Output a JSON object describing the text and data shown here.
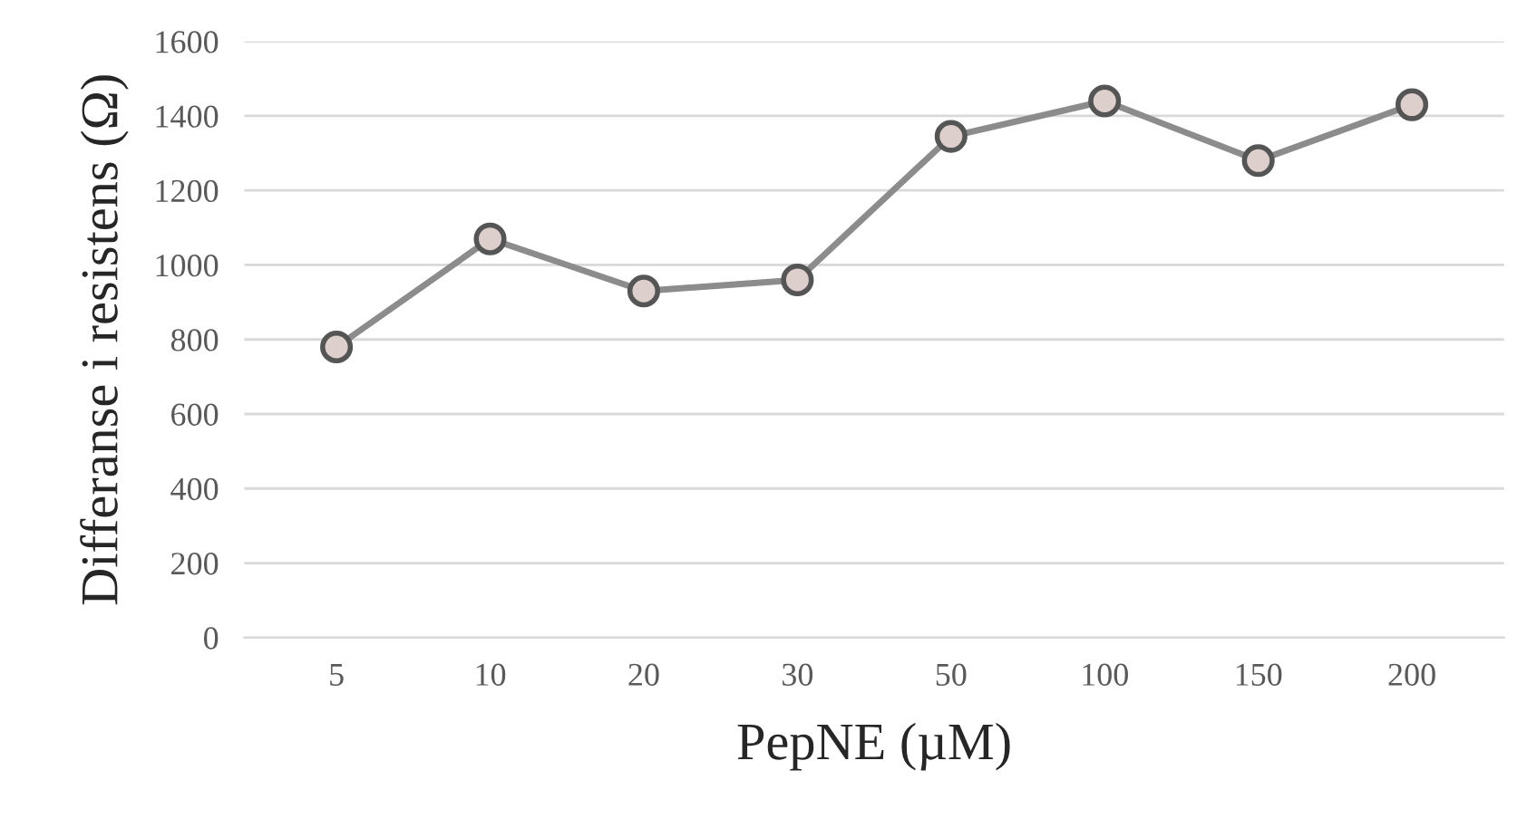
{
  "chart_data": {
    "type": "line",
    "xlabel": "PepNE (µM)",
    "ylabel": "Differanse i resistens (Ω)",
    "categories": [
      "5",
      "10",
      "20",
      "30",
      "50",
      "100",
      "150",
      "200"
    ],
    "series": [
      {
        "color": "#8c8c8c",
        "values": [
          780,
          1070,
          930,
          960,
          1345,
          1440,
          1280,
          1430
        ]
      }
    ],
    "ylim": [
      0,
      1600
    ],
    "yticks": [
      0,
      200,
      400,
      600,
      800,
      1000,
      1200,
      1400,
      1600
    ],
    "grid": "y",
    "marker": "circle",
    "line_style": "solid"
  }
}
